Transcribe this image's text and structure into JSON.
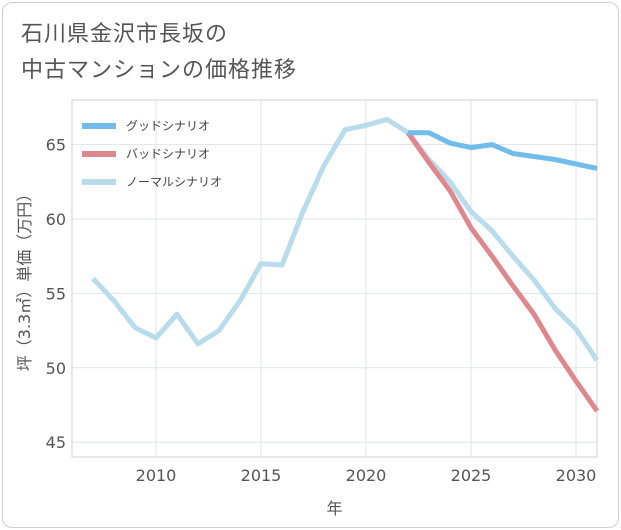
{
  "title_lines": [
    "石川県金沢市長坂の",
    "中古マンションの価格推移"
  ],
  "chart_data": {
    "type": "line",
    "xlabel": "年",
    "ylabel": "坪（3.3㎡）単価（万円）",
    "xlim": [
      2006,
      2031
    ],
    "ylim": [
      44,
      68
    ],
    "x_ticks": [
      2010,
      2015,
      2020,
      2025,
      2030
    ],
    "y_ticks": [
      45,
      50,
      55,
      60,
      65
    ],
    "grid": true,
    "legend_position": "top-left",
    "series": [
      {
        "name": "グッドシナリオ",
        "color": "#72bcec",
        "x": [
          2022,
          2023,
          2024,
          2025,
          2026,
          2027,
          2028,
          2029,
          2030,
          2031
        ],
        "values": [
          65.8,
          65.8,
          65.1,
          64.8,
          65.0,
          64.4,
          64.2,
          64.0,
          63.7,
          63.4
        ]
      },
      {
        "name": "バッドシナリオ",
        "color": "#e0868d",
        "x": [
          2022,
          2023,
          2024,
          2025,
          2026,
          2027,
          2028,
          2029,
          2030,
          2031
        ],
        "values": [
          65.8,
          63.8,
          61.9,
          59.4,
          57.5,
          55.5,
          53.6,
          51.2,
          49.1,
          47.1
        ]
      },
      {
        "name": "ノーマルシナリオ",
        "color": "#b8dcec",
        "x": [
          2007,
          2008,
          2009,
          2010,
          2011,
          2012,
          2013,
          2014,
          2015,
          2016,
          2017,
          2018,
          2019,
          2020,
          2021,
          2022,
          2023,
          2024,
          2025,
          2026,
          2027,
          2028,
          2029,
          2030,
          2031
        ],
        "values": [
          56.0,
          54.5,
          52.7,
          52.0,
          53.6,
          51.6,
          52.5,
          54.5,
          57.0,
          56.9,
          60.5,
          63.6,
          66.0,
          66.3,
          66.7,
          65.8,
          64.0,
          62.5,
          60.5,
          59.2,
          57.5,
          55.9,
          54.0,
          52.6,
          50.5
        ]
      }
    ]
  }
}
